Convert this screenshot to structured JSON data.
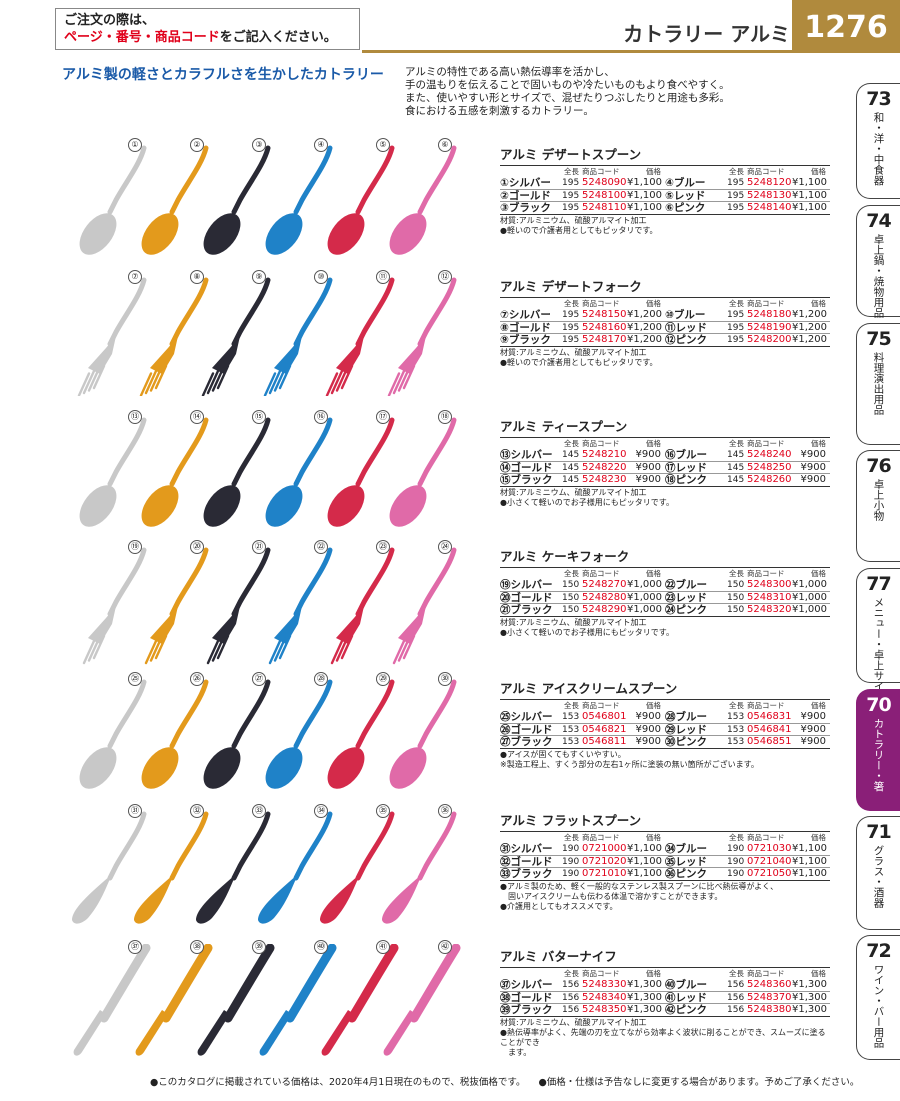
{
  "notice": {
    "line1": "ご注文の際は、",
    "red": "ページ・番号・商品コード",
    "line2_tail": "をご記入ください。"
  },
  "header": {
    "title": "カトラリー アルミ",
    "page_number": "1276"
  },
  "lead": "アルミ製の軽さとカラフルさを生かしたカトラリー",
  "description": [
    "アルミの特性である高い熱伝導率を活かし、",
    "手の温もりを伝えることで固いものや冷たいものもより食べやすく。",
    "また、使いやすい形とサイズで、混ぜたりつぶしたりと用途も多彩。",
    "食における五感を刺激するカトラリー。"
  ],
  "tabs": [
    {
      "num": "73",
      "label": "和・洋・中食器"
    },
    {
      "num": "74",
      "label": "卓上鍋・焼物用品"
    },
    {
      "num": "75",
      "label": "料理演出用品"
    },
    {
      "num": "76",
      "label": "卓上小物"
    },
    {
      "num": "77",
      "label": "メニュー・卓上サイン"
    },
    {
      "num": "70",
      "label": "カトラリー・箸"
    },
    {
      "num": "71",
      "label": "グラス・酒器"
    },
    {
      "num": "72",
      "label": "ワイン・バー用品"
    }
  ],
  "table_headers": {
    "length": "全長",
    "code": "商品コード",
    "price": "価格"
  },
  "colors": {
    "silver": "#c8c8c8",
    "gold": "#e39a1c",
    "black": "#2a2a35",
    "blue": "#1f82c8",
    "red": "#d42a4a",
    "pink": "#e06aa8"
  },
  "products": [
    {
      "name": "アルミ デザートスプーン",
      "shape": "spoon",
      "start": 1,
      "rows": [
        [
          "①シルバー",
          "195",
          "5248090",
          "¥1,100",
          "④ブルー",
          "195",
          "5248120",
          "¥1,100"
        ],
        [
          "②ゴールド",
          "195",
          "5248100",
          "¥1,100",
          "⑤レッド",
          "195",
          "5248130",
          "¥1,100"
        ],
        [
          "③ブラック",
          "195",
          "5248110",
          "¥1,100",
          "⑥ピンク",
          "195",
          "5248140",
          "¥1,100"
        ]
      ],
      "notes": [
        "材質:アルミニウム、硫酸アルマイト加工",
        "●軽いので介護者用としてもピッタリです。"
      ]
    },
    {
      "name": "アルミ デザートフォーク",
      "shape": "fork",
      "start": 7,
      "rows": [
        [
          "⑦シルバー",
          "195",
          "5248150",
          "¥1,200",
          "⑩ブルー",
          "195",
          "5248180",
          "¥1,200"
        ],
        [
          "⑧ゴールド",
          "195",
          "5248160",
          "¥1,200",
          "⑪レッド",
          "195",
          "5248190",
          "¥1,200"
        ],
        [
          "⑨ブラック",
          "195",
          "5248170",
          "¥1,200",
          "⑫ピンク",
          "195",
          "5248200",
          "¥1,200"
        ]
      ],
      "notes": [
        "材質:アルミニウム、硫酸アルマイト加工",
        "●軽いので介護者用としてもピッタリです。"
      ]
    },
    {
      "name": "アルミ ティースプーン",
      "shape": "spoon",
      "start": 13,
      "rows": [
        [
          "⑬シルバー",
          "145",
          "5248210",
          "¥900",
          "⑯ブルー",
          "145",
          "5248240",
          "¥900"
        ],
        [
          "⑭ゴールド",
          "145",
          "5248220",
          "¥900",
          "⑰レッド",
          "145",
          "5248250",
          "¥900"
        ],
        [
          "⑮ブラック",
          "145",
          "5248230",
          "¥900",
          "⑱ピンク",
          "145",
          "5248260",
          "¥900"
        ]
      ],
      "notes": [
        "材質:アルミニウム、硫酸アルマイト加工",
        "●小さくて軽いのでお子様用にもピッタリです。"
      ]
    },
    {
      "name": "アルミ ケーキフォーク",
      "shape": "cakefork",
      "start": 19,
      "rows": [
        [
          "⑲シルバー",
          "150",
          "5248270",
          "¥1,000",
          "㉒ブルー",
          "150",
          "5248300",
          "¥1,000"
        ],
        [
          "⑳ゴールド",
          "150",
          "5248280",
          "¥1,000",
          "㉓レッド",
          "150",
          "5248310",
          "¥1,000"
        ],
        [
          "㉑ブラック",
          "150",
          "5248290",
          "¥1,000",
          "㉔ピンク",
          "150",
          "5248320",
          "¥1,000"
        ]
      ],
      "notes": [
        "材質:アルミニウム、硫酸アルマイト加工",
        "●小さくて軽いのでお子様用にもピッタリです。"
      ]
    },
    {
      "name": "アルミ アイスクリームスプーン",
      "shape": "icespoon",
      "start": 25,
      "rows": [
        [
          "㉕シルバー",
          "153",
          "0546801",
          "¥900",
          "㉘ブルー",
          "153",
          "0546831",
          "¥900"
        ],
        [
          "㉖ゴールド",
          "153",
          "0546821",
          "¥900",
          "㉙レッド",
          "153",
          "0546841",
          "¥900"
        ],
        [
          "㉗ブラック",
          "153",
          "0546811",
          "¥900",
          "㉚ピンク",
          "153",
          "0546851",
          "¥900"
        ]
      ],
      "notes": [
        "●アイスが固くてもすくいやすい。",
        "※製造工程上、すくう部分の左右1ヶ所に塗装の無い箇所がございます。"
      ]
    },
    {
      "name": "アルミ フラットスプーン",
      "shape": "flat",
      "start": 31,
      "rows": [
        [
          "㉛シルバー",
          "190",
          "0721000",
          "¥1,100",
          "㉞ブルー",
          "190",
          "0721030",
          "¥1,100"
        ],
        [
          "㉜ゴールド",
          "190",
          "0721020",
          "¥1,100",
          "㉟レッド",
          "190",
          "0721040",
          "¥1,100"
        ],
        [
          "㉝ブラック",
          "190",
          "0721010",
          "¥1,100",
          "㊱ピンク",
          "190",
          "0721050",
          "¥1,100"
        ]
      ],
      "notes": [
        "●アルミ製のため、軽く一般的なステンレス製スプーンに比べ熱伝導がよく、",
        "　固いアイスクリームも伝わる体温で溶かすことができます。",
        "●介護用としてもオススメです。"
      ]
    },
    {
      "name": "アルミ バターナイフ",
      "shape": "knife",
      "start": 37,
      "rows": [
        [
          "㊲シルバー",
          "156",
          "5248330",
          "¥1,300",
          "㊵ブルー",
          "156",
          "5248360",
          "¥1,300"
        ],
        [
          "㊳ゴールド",
          "156",
          "5248340",
          "¥1,300",
          "㊶レッド",
          "156",
          "5248370",
          "¥1,300"
        ],
        [
          "㊴ブラック",
          "156",
          "5248350",
          "¥1,300",
          "㊷ピンク",
          "156",
          "5248380",
          "¥1,300"
        ]
      ],
      "notes": [
        "材質:アルミニウム、硫酸アルマイト加工",
        "●熱伝導率がよく、先端の刃を立てながら効率よく波状に削ることができ、スムーズに塗ることができ",
        "　ます。"
      ]
    }
  ],
  "circled": [
    "①",
    "②",
    "③",
    "④",
    "⑤",
    "⑥",
    "⑦",
    "⑧",
    "⑨",
    "⑩",
    "⑪",
    "⑫",
    "⑬",
    "⑭",
    "⑮",
    "⑯",
    "⑰",
    "⑱",
    "⑲",
    "⑳",
    "㉑",
    "㉒",
    "㉓",
    "㉔",
    "㉕",
    "㉖",
    "㉗",
    "㉘",
    "㉙",
    "㉚",
    "㉛",
    "㉜",
    "㉝",
    "㉞",
    "㉟",
    "㊱",
    "㊲",
    "㊳",
    "㊴",
    "㊵",
    "㊶",
    "㊷"
  ],
  "footer": [
    "●このカタログに掲載されている価格は、2020年4月1日現在のもので、税抜価格です。",
    "●価格・仕様は予告なしに変更する場合があります。予めご了承ください。"
  ]
}
